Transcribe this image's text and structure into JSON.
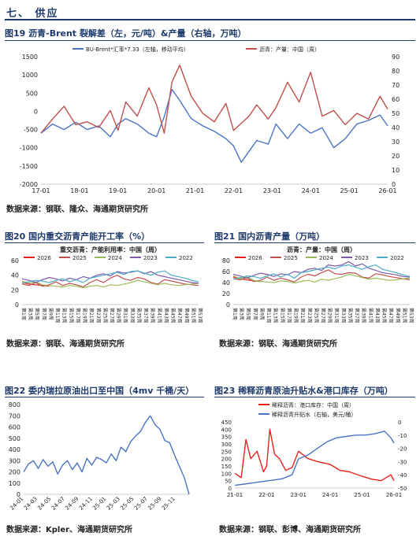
{
  "section": {
    "title": "七、 供应"
  },
  "figures": [
    {
      "id": "fig19",
      "title": "图19  沥青-Brent 裂解差（左，元/吨）&产量（右轴，万吨）",
      "source": "数据来源：钢联、隆众、海通期货研究所"
    },
    {
      "id": "fig20",
      "title": "图20  国内重交沥青产能开工率（%）",
      "source": "数据来源：钢联、海通期货研究所"
    },
    {
      "id": "fig21",
      "title": "图21  国内沥青产量（万吨）",
      "source": "数据来源：钢联、海通期货研究所"
    },
    {
      "id": "fig22",
      "title": "图22  委内瑞拉原油出口至中国（4mv 千桶/天）",
      "source": "数据来源：Kpler、海通期货研究所"
    },
    {
      "id": "fig23",
      "title": "图23  稀释沥青原油升贴水&港口库存（万吨）",
      "source": "数据来源：钢联、彭博、海通期货研究所"
    }
  ],
  "colors": {
    "blue": "#4a74c4",
    "red": "#c0504d",
    "red2": "#e8211d",
    "orange": "#e8892b",
    "green": "#9bbb59",
    "purple": "#7f5aa8",
    "cyan": "#4bacc6",
    "navy": "#1f3b6d"
  },
  "chart_data": [
    {
      "type": "line",
      "title": "",
      "x_ticks": [
        "17-01",
        "18-01",
        "19-01",
        "20-01",
        "21-01",
        "22-01",
        "23-01",
        "24-01",
        "25-01",
        "26-01"
      ],
      "yleft_ticks": [
        1500,
        1000,
        500,
        0,
        -500,
        -1000,
        -1500,
        -2000
      ],
      "yright_ticks": [
        90,
        80,
        70,
        60,
        50,
        40,
        30,
        20,
        10,
        0
      ],
      "ylim_left": [
        -2000,
        1500
      ],
      "ylim_right": [
        0,
        90
      ],
      "series": [
        {
          "name": "BU-Brent*汇率*7.33（左轴，移动平均）",
          "axis": "left",
          "x": [
            2017.0,
            2017.3,
            2017.6,
            2017.9,
            2018.2,
            2018.5,
            2018.8,
            2019.0,
            2019.2,
            2019.5,
            2019.8,
            2020.0,
            2020.2,
            2020.4,
            2020.6,
            2020.9,
            2021.2,
            2021.5,
            2021.8,
            2022.0,
            2022.2,
            2022.4,
            2022.6,
            2022.9,
            2023.1,
            2023.4,
            2023.7,
            2024.0,
            2024.3,
            2024.6,
            2024.9,
            2025.2,
            2025.5,
            2025.8,
            2026.0
          ],
          "values": [
            -600,
            -350,
            -500,
            -300,
            -500,
            -400,
            -700,
            -350,
            -200,
            -350,
            -600,
            -700,
            -150,
            600,
            300,
            -200,
            -400,
            -550,
            -750,
            -950,
            -1400,
            -1100,
            -800,
            -900,
            -350,
            -750,
            -350,
            -600,
            -450,
            -1000,
            -750,
            -350,
            -250,
            -100,
            -400
          ]
        },
        {
          "name": "沥青：产量：中国（周）",
          "axis": "right",
          "x": [
            2017.0,
            2017.3,
            2017.6,
            2017.9,
            2018.2,
            2018.5,
            2018.8,
            2019.0,
            2019.2,
            2019.5,
            2019.8,
            2020.0,
            2020.2,
            2020.4,
            2020.6,
            2020.9,
            2021.2,
            2021.5,
            2021.8,
            2022.0,
            2022.2,
            2022.4,
            2022.6,
            2022.9,
            2023.1,
            2023.4,
            2023.7,
            2024.0,
            2024.3,
            2024.6,
            2024.9,
            2025.2,
            2025.5,
            2025.8,
            2026.0
          ],
          "values": [
            36,
            46,
            55,
            42,
            44,
            40,
            52,
            38,
            58,
            48,
            68,
            56,
            36,
            72,
            84,
            62,
            50,
            44,
            57,
            38,
            43,
            48,
            56,
            46,
            54,
            72,
            58,
            79,
            48,
            52,
            42,
            50,
            46,
            62,
            53
          ]
        }
      ],
      "legend": "top"
    },
    {
      "type": "line",
      "title": "重交沥青：产能利用率：中国（周）",
      "y_ticks": [
        60,
        40,
        20,
        0
      ],
      "ylim": [
        0,
        60
      ],
      "x_ticks": [
        "第1周",
        "第3周",
        "第5周",
        "第7周",
        "第9周",
        "第11周",
        "第13周",
        "第15周",
        "第17周",
        "第19周",
        "第21周",
        "第23周",
        "第25周",
        "第27周",
        "第29周",
        "第31周",
        "第33周",
        "第35周",
        "第37周",
        "第39周",
        "第41周",
        "第43周",
        "第45周",
        "第47周",
        "第49周",
        "第51周",
        "第53周"
      ],
      "series": [
        {
          "name": "2026",
          "values": [
            30,
            28,
            27,
            26,
            25
          ]
        },
        {
          "name": "2025",
          "values": [
            28,
            26,
            30,
            25,
            27,
            31,
            26,
            29,
            27,
            24,
            30,
            34,
            30,
            36,
            40,
            35,
            33,
            37,
            35,
            30,
            28,
            34,
            32,
            30,
            28,
            27,
            26
          ]
        },
        {
          "name": "2024",
          "values": [
            32,
            29,
            31,
            27,
            26,
            25,
            24,
            26,
            25,
            23,
            25,
            26,
            24,
            27,
            26,
            28,
            30,
            33,
            31,
            29,
            27,
            29,
            27,
            26,
            27,
            28,
            29
          ]
        },
        {
          "name": "2023",
          "values": [
            35,
            33,
            30,
            34,
            37,
            35,
            32,
            36,
            34,
            38,
            36,
            40,
            42,
            39,
            45,
            43,
            44,
            46,
            42,
            45,
            40,
            38,
            36,
            34,
            32,
            30,
            29
          ]
        },
        {
          "name": "2022",
          "values": [
            29,
            31,
            33,
            32,
            30,
            33,
            35,
            31,
            34,
            30,
            36,
            38,
            40,
            42,
            44,
            41,
            45,
            46,
            43,
            40,
            44,
            46,
            40,
            38,
            36,
            33,
            31
          ]
        }
      ],
      "legend": "top"
    },
    {
      "type": "line",
      "title": "沥青：产量：中国（周）",
      "y_ticks": [
        80,
        60,
        40,
        20,
        0
      ],
      "ylim": [
        0,
        80
      ],
      "x_ticks": [
        "第1周",
        "第3周",
        "第5周",
        "第7周",
        "第9周",
        "第11周",
        "第13周",
        "第15周",
        "第17周",
        "第19周",
        "第21周",
        "第23周",
        "第25周",
        "第27周",
        "第29周",
        "第31周",
        "第33周",
        "第35周",
        "第37周",
        "第39周",
        "第41周",
        "第43周",
        "第45周",
        "第47周",
        "第49周",
        "第51周",
        "第53周"
      ],
      "series": [
        {
          "name": "2026",
          "values": [
            50,
            47,
            45,
            43,
            42
          ]
        },
        {
          "name": "2025",
          "values": [
            47,
            45,
            49,
            42,
            44,
            50,
            44,
            48,
            45,
            41,
            50,
            55,
            52,
            58,
            63,
            56,
            55,
            58,
            57,
            50,
            48,
            56,
            54,
            51,
            49,
            47,
            45
          ]
        },
        {
          "name": "2024",
          "values": [
            52,
            47,
            50,
            44,
            42,
            41,
            40,
            43,
            42,
            39,
            42,
            44,
            41,
            46,
            44,
            47,
            50,
            55,
            52,
            49,
            46,
            48,
            46,
            44,
            45,
            47,
            48
          ]
        },
        {
          "name": "2023",
          "values": [
            55,
            52,
            48,
            53,
            57,
            55,
            51,
            56,
            54,
            60,
            58,
            64,
            66,
            62,
            72,
            70,
            72,
            78,
            70,
            74,
            66,
            62,
            58,
            56,
            54,
            51,
            50
          ]
        },
        {
          "name": "2022",
          "values": [
            46,
            49,
            52,
            51,
            48,
            52,
            56,
            50,
            55,
            48,
            58,
            60,
            63,
            66,
            68,
            65,
            70,
            72,
            68,
            64,
            69,
            72,
            64,
            61,
            58,
            54,
            51
          ]
        }
      ],
      "legend": "top"
    },
    {
      "type": "line",
      "title": "",
      "y_ticks": [
        800,
        700,
        600,
        500,
        400,
        300,
        200,
        100,
        0
      ],
      "ylim": [
        0,
        800
      ],
      "x_ticks": [
        "24-01",
        "24-03",
        "24-05",
        "24-07",
        "24-09",
        "24-11",
        "25-01",
        "25-03",
        "25-05",
        "25-07",
        "25-09",
        "25-11"
      ],
      "series": [
        {
          "name": "",
          "values": [
            200,
            270,
            300,
            230,
            310,
            250,
            290,
            180,
            260,
            300,
            220,
            280,
            200,
            320,
            260,
            330,
            310,
            280,
            360,
            300,
            420,
            380,
            470,
            520,
            560,
            640,
            700,
            620,
            580,
            480,
            460,
            350,
            250,
            150,
            0
          ]
        }
      ]
    },
    {
      "type": "line",
      "title": "",
      "x_ticks": [
        "21-01",
        "22-01",
        "23-01",
        "24-01",
        "25-01",
        "26-01"
      ],
      "yleft_ticks": [
        450,
        400,
        350,
        300,
        250,
        200,
        150,
        100,
        50,
        0
      ],
      "yright_ticks": [
        0,
        -10,
        -20,
        -30,
        -40,
        -50
      ],
      "ylim_left": [
        0,
        450
      ],
      "ylim_right": [
        -50,
        0
      ],
      "series": [
        {
          "name": "稀释沥青：港口库存：中国（周）",
          "axis": "left",
          "x": [
            2021.0,
            2021.2,
            2021.35,
            2021.5,
            2021.7,
            2021.9,
            2022.0,
            2022.1,
            2022.25,
            2022.4,
            2022.6,
            2022.8,
            2023.0,
            2023.3,
            2023.6,
            2024.0,
            2024.3,
            2024.6,
            2025.0,
            2025.3,
            2025.6,
            2025.9,
            2026.0
          ],
          "values": [
            100,
            70,
            330,
            200,
            250,
            110,
            150,
            400,
            230,
            200,
            120,
            140,
            250,
            200,
            180,
            160,
            120,
            110,
            80,
            60,
            50,
            90,
            50
          ]
        },
        {
          "name": "稀释沥青升贴水（右轴，美元/桶）",
          "axis": "right",
          "x": [
            2021.0,
            2021.3,
            2021.6,
            2021.9,
            2022.2,
            2022.5,
            2022.8,
            2023.0,
            2023.3,
            2023.6,
            2023.9,
            2024.2,
            2024.5,
            2024.8,
            2025.1,
            2025.4,
            2025.7,
            2025.9,
            2026.0
          ],
          "values": [
            -48,
            -47,
            -46,
            -45,
            -44,
            -43,
            -40,
            -28,
            -25,
            -20,
            -15,
            -12,
            -11,
            -10,
            -10,
            -9,
            -7,
            -12,
            -16
          ]
        }
      ],
      "legend": "top"
    }
  ]
}
